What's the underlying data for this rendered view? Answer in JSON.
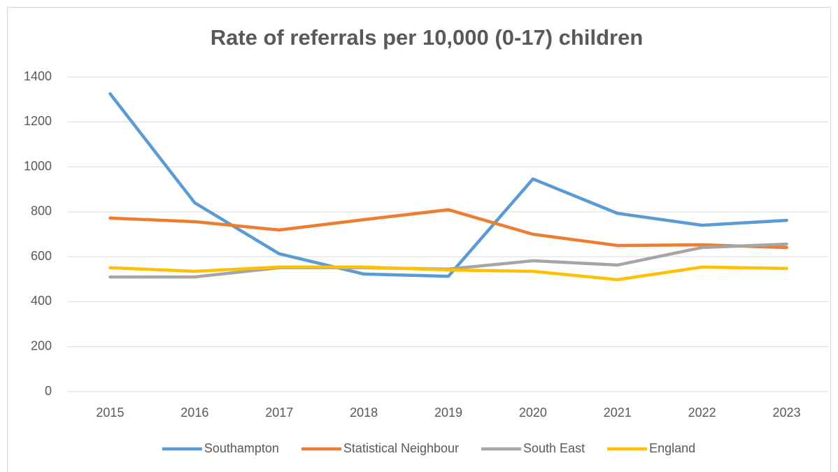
{
  "chart_data": {
    "type": "line",
    "title": "Rate of referrals per 10,000 (0-17) children",
    "categories": [
      "2015",
      "2016",
      "2017",
      "2018",
      "2019",
      "2020",
      "2021",
      "2022",
      "2023"
    ],
    "series": [
      {
        "name": "Southampton",
        "color": "#5b9bd5",
        "values": [
          1325,
          840,
          613,
          523,
          513,
          946,
          793,
          740,
          762
        ]
      },
      {
        "name": "Statistical Neighbour",
        "color": "#ed7d31",
        "values": [
          772,
          756,
          719,
          765,
          809,
          700,
          650,
          653,
          641
        ]
      },
      {
        "name": "South East",
        "color": "#a5a5a5",
        "values": [
          510,
          510,
          551,
          551,
          545,
          582,
          563,
          641,
          656
        ]
      },
      {
        "name": "England",
        "color": "#ffc000",
        "values": [
          551,
          535,
          554,
          554,
          541,
          535,
          498,
          554,
          548
        ]
      }
    ],
    "ylim": [
      0,
      1400
    ],
    "yticks": [
      0,
      200,
      400,
      600,
      800,
      1000,
      1200,
      1400
    ],
    "grid": true,
    "legend": "bottom"
  }
}
